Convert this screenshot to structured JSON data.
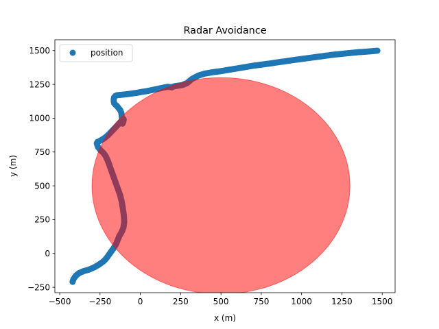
{
  "chart_data": {
    "type": "scatter",
    "title": "Radar Avoidance",
    "xlabel": "x (m)",
    "ylabel": "y (m)",
    "xlim": [
      -530,
      1580
    ],
    "ylim": [
      -290,
      1580
    ],
    "x_ticks": [
      -500,
      -250,
      0,
      250,
      500,
      750,
      1000,
      1250,
      1500
    ],
    "y_ticks": [
      -250,
      0,
      250,
      500,
      750,
      1000,
      1250,
      1500
    ],
    "x_tick_labels": [
      "−500",
      "−250",
      "0",
      "250",
      "500",
      "750",
      "1000",
      "1250",
      "1500"
    ],
    "y_tick_labels": [
      "−250",
      "0",
      "250",
      "500",
      "750",
      "1000",
      "1250",
      "1500"
    ],
    "grid": false,
    "legend": {
      "placement": "top-left",
      "entries": [
        "position"
      ]
    },
    "series": [
      {
        "name": "position",
        "color": "#1f77b4",
        "x": [
          -420,
          -415,
          -400,
          -380,
          -350,
          -320,
          -290,
          -260,
          -230,
          -210,
          -195,
          -180,
          -165,
          -150,
          -140,
          -130,
          -115,
          -105,
          -100,
          -102,
          -108,
          -115,
          -125,
          -140,
          -155,
          -170,
          -185,
          -200,
          -215,
          -230,
          -245,
          -255,
          -262,
          -265,
          -268,
          -270,
          -265,
          -255,
          -240,
          -220,
          -200,
          -180,
          -160,
          -140,
          -125,
          -112,
          -105,
          -103,
          -105,
          -110,
          -118,
          -125,
          -135,
          -145,
          -155,
          -162,
          -165,
          -165,
          -162,
          -155,
          -145,
          -130,
          -110,
          -80,
          -50,
          -20,
          10,
          40,
          80,
          120,
          150,
          170,
          185,
          195,
          200,
          210,
          230,
          260,
          290,
          320,
          360,
          400,
          450,
          500,
          550,
          600,
          650,
          700,
          750,
          800,
          850,
          900,
          950,
          1000,
          1050,
          1100,
          1150,
          1200,
          1250,
          1300,
          1350,
          1400,
          1440,
          1470
        ],
        "y": [
          -210,
          -190,
          -165,
          -145,
          -130,
          -120,
          -105,
          -85,
          -60,
          -35,
          -10,
          15,
          40,
          70,
          100,
          130,
          160,
          190,
          230,
          280,
          330,
          380,
          430,
          480,
          530,
          580,
          630,
          680,
          720,
          745,
          760,
          775,
          785,
          795,
          805,
          815,
          825,
          830,
          840,
          855,
          875,
          900,
          925,
          950,
          970,
          985,
          995,
          990,
          975,
          960,
          1040,
          1060,
          1075,
          1090,
          1100,
          1110,
          1125,
          1140,
          1155,
          1165,
          1170,
          1172,
          1174,
          1178,
          1183,
          1188,
          1195,
          1200,
          1210,
          1220,
          1228,
          1232,
          1230,
          1228,
          1232,
          1236,
          1240,
          1245,
          1260,
          1290,
          1315,
          1330,
          1340,
          1348,
          1358,
          1368,
          1378,
          1388,
          1396,
          1404,
          1413,
          1421,
          1430,
          1438,
          1446,
          1454,
          1462,
          1470,
          1476,
          1482,
          1488,
          1492,
          1496,
          1499
        ]
      }
    ],
    "shapes": [
      {
        "kind": "circle",
        "center": [
          500,
          500
        ],
        "radius": 800,
        "color": "#ff0000",
        "alpha": 0.5
      }
    ]
  }
}
